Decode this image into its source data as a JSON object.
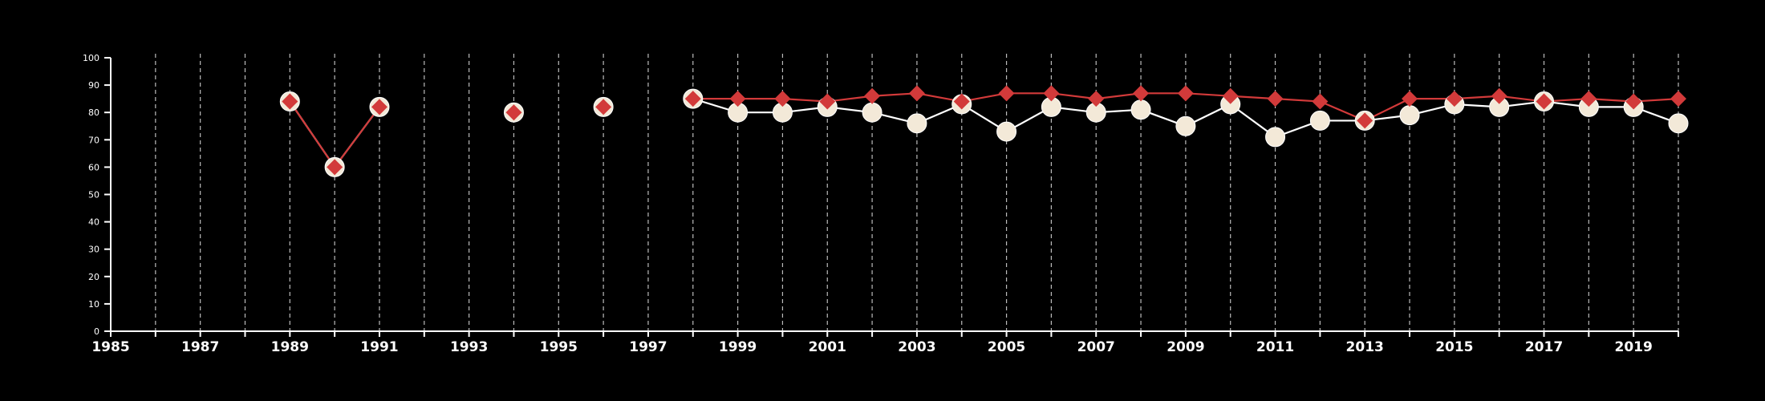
{
  "chart_data": {
    "type": "line",
    "title": "",
    "xlabel": "",
    "ylabel": "",
    "xlim": [
      1985,
      2020
    ],
    "ylim": [
      0,
      100
    ],
    "y_ticks": [
      0,
      10,
      20,
      30,
      40,
      50,
      60,
      70,
      80,
      90,
      100
    ],
    "x_tick_labels": [
      1985,
      1987,
      1989,
      1991,
      1993,
      1995,
      1997,
      1999,
      2001,
      2003,
      2005,
      2007,
      2009,
      2011,
      2013,
      2015,
      2017,
      2019
    ],
    "grid": "vertical dashed lines at each year",
    "legend": "none",
    "colors": {
      "background": "#000000",
      "axis": "#ffffff",
      "grid": "#bbbbbb",
      "series_1_line": "#ffffff",
      "series_1_marker": "#f3e9d8",
      "series_2": "#d23a3a"
    },
    "series": [
      {
        "marker": "circle",
        "points": [
          [
            1989,
            84
          ],
          [
            1990,
            60
          ],
          [
            1991,
            82
          ],
          [
            1994,
            80
          ],
          [
            1996,
            82
          ],
          [
            1998,
            85
          ],
          [
            1999,
            80
          ],
          [
            2000,
            80
          ],
          [
            2001,
            82
          ],
          [
            2002,
            80
          ],
          [
            2003,
            76
          ],
          [
            2004,
            83
          ],
          [
            2005,
            73
          ],
          [
            2006,
            82
          ],
          [
            2007,
            80
          ],
          [
            2008,
            81
          ],
          [
            2009,
            75
          ],
          [
            2010,
            83
          ],
          [
            2011,
            71
          ],
          [
            2012,
            77
          ],
          [
            2013,
            77
          ],
          [
            2014,
            79
          ],
          [
            2015,
            83
          ],
          [
            2016,
            82
          ],
          [
            2017,
            84
          ],
          [
            2018,
            82
          ],
          [
            2019,
            82
          ],
          [
            2020,
            76
          ]
        ]
      },
      {
        "marker": "diamond",
        "points": [
          [
            1989,
            84
          ],
          [
            1990,
            60
          ],
          [
            1991,
            82
          ],
          [
            1994,
            80
          ],
          [
            1996,
            82
          ],
          [
            1998,
            85
          ],
          [
            1999,
            85
          ],
          [
            2000,
            85
          ],
          [
            2001,
            84
          ],
          [
            2002,
            86
          ],
          [
            2003,
            87
          ],
          [
            2004,
            84
          ],
          [
            2005,
            87
          ],
          [
            2006,
            87
          ],
          [
            2007,
            85
          ],
          [
            2008,
            87
          ],
          [
            2009,
            87
          ],
          [
            2010,
            86
          ],
          [
            2011,
            85
          ],
          [
            2012,
            84
          ],
          [
            2013,
            77
          ],
          [
            2014,
            85
          ],
          [
            2015,
            85
          ],
          [
            2016,
            86
          ],
          [
            2017,
            84
          ],
          [
            2018,
            85
          ],
          [
            2019,
            84
          ],
          [
            2020,
            85
          ]
        ]
      }
    ]
  }
}
